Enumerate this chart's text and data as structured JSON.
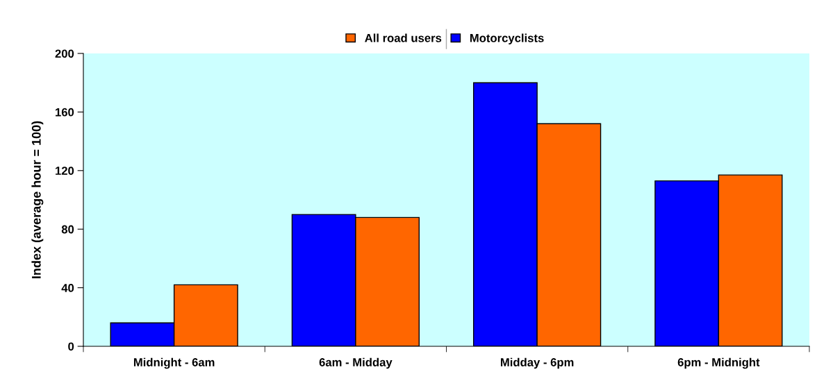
{
  "chart_data": {
    "type": "bar",
    "ylabel": "Index (average hour = 100)",
    "categories": [
      "Midnight - 6am",
      "6am - Midday",
      "Midday - 6pm",
      "6pm - Midnight"
    ],
    "series": [
      {
        "name": "Motorcyclists",
        "color": "#0000ff",
        "values": [
          16,
          90,
          180,
          113
        ]
      },
      {
        "name": "All road users",
        "color": "#ff6600",
        "values": [
          42,
          88,
          152,
          117
        ]
      }
    ],
    "ylim": [
      0,
      200
    ],
    "yticks": [
      0,
      40,
      80,
      120,
      160,
      200
    ],
    "grid": false,
    "legend": "top"
  }
}
